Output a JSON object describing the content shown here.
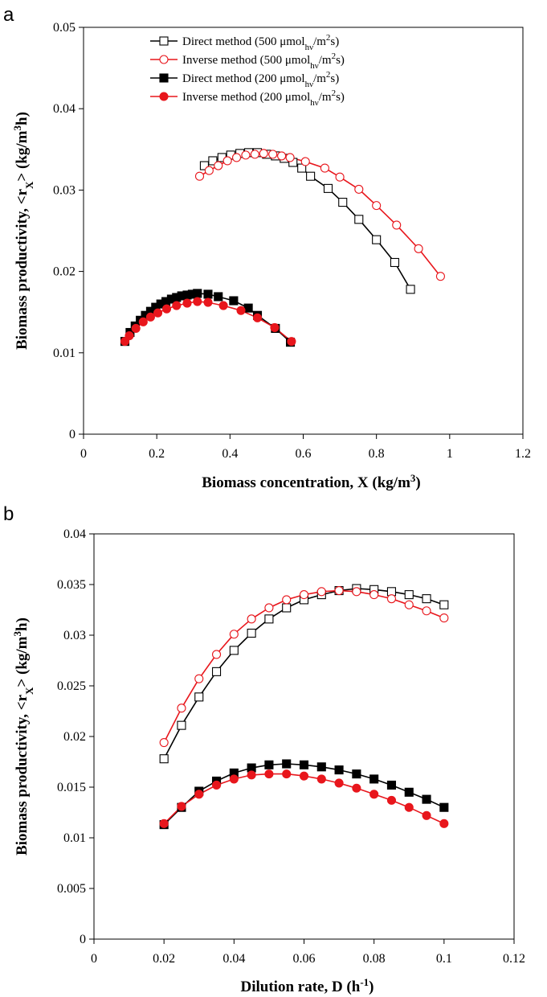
{
  "colors": {
    "black": "#000000",
    "red": "#e8161c"
  },
  "legend_entries": [
    {
      "method": "Direct method",
      "light": "500",
      "color": "#000000",
      "marker": "square",
      "filled": false
    },
    {
      "method": "Inverse method",
      "light": "500",
      "color": "#e8161c",
      "marker": "circle",
      "filled": false
    },
    {
      "method": "Direct method",
      "light": "200",
      "color": "#000000",
      "marker": "square",
      "filled": true
    },
    {
      "method": "Inverse method",
      "light": "200",
      "color": "#e8161c",
      "marker": "circle",
      "filled": true
    }
  ],
  "legend_unit": {
    "prefix": "μmol",
    "sub": "hν",
    "mid": "/m",
    "sup": "2",
    "suffix": "s"
  },
  "chart_data": [
    {
      "panel": "a",
      "type": "scatter",
      "xlabel": "Biomass concentration, X (kg/m³)",
      "ylabel": "Biomass productivity, <rX> (kg/m³h)",
      "xlim": [
        0,
        1.2
      ],
      "ylim": [
        0,
        0.05
      ],
      "xticks": [
        "0",
        "0.2",
        "0.4",
        "0.6",
        "0.8",
        "1",
        "1.2"
      ],
      "yticks": [
        "0",
        "0.01",
        "0.02",
        "0.03",
        "0.04",
        "0.05"
      ],
      "legend_position": "top-left",
      "series": [
        {
          "name": "Direct method (500 μmolhν/m²s)",
          "x": [
            0.33,
            0.353,
            0.378,
            0.402,
            0.427,
            0.451,
            0.475,
            0.5,
            0.524,
            0.548,
            0.572,
            0.596,
            0.62,
            0.668,
            0.708,
            0.752,
            0.8,
            0.85,
            0.893
          ],
          "y": [
            0.033,
            0.0336,
            0.034,
            0.0343,
            0.0345,
            0.0346,
            0.0346,
            0.0344,
            0.0342,
            0.0339,
            0.0334,
            0.0327,
            0.0317,
            0.0302,
            0.0285,
            0.0264,
            0.0239,
            0.0211,
            0.0178
          ]
        },
        {
          "name": "Inverse method (500 μmolhν/m²s)",
          "x": [
            0.317,
            0.343,
            0.368,
            0.393,
            0.418,
            0.443,
            0.468,
            0.492,
            0.517,
            0.541,
            0.564,
            0.606,
            0.659,
            0.7,
            0.752,
            0.8,
            0.855,
            0.915,
            0.975
          ],
          "y": [
            0.0317,
            0.0324,
            0.033,
            0.0336,
            0.034,
            0.0343,
            0.0344,
            0.0345,
            0.0344,
            0.0342,
            0.034,
            0.0335,
            0.0327,
            0.0316,
            0.0301,
            0.0281,
            0.0257,
            0.0228,
            0.0194
          ]
        },
        {
          "name": "Direct method (200 μmolhν/m²s)",
          "x": [
            0.113,
            0.127,
            0.141,
            0.155,
            0.169,
            0.183,
            0.197,
            0.211,
            0.225,
            0.24,
            0.254,
            0.268,
            0.283,
            0.297,
            0.311,
            0.34,
            0.368,
            0.41,
            0.45,
            0.475,
            0.524,
            0.565
          ],
          "y": [
            0.0114,
            0.0125,
            0.0133,
            0.014,
            0.0146,
            0.0151,
            0.0156,
            0.016,
            0.0163,
            0.0166,
            0.0168,
            0.017,
            0.0171,
            0.0172,
            0.0173,
            0.0172,
            0.0169,
            0.0164,
            0.0155,
            0.0146,
            0.013,
            0.0113
          ]
        },
        {
          "name": "Inverse method (200 μmolhν/m²s)",
          "x": [
            0.113,
            0.125,
            0.143,
            0.163,
            0.183,
            0.203,
            0.227,
            0.254,
            0.283,
            0.311,
            0.34,
            0.382,
            0.43,
            0.475,
            0.522,
            0.568
          ],
          "y": [
            0.0114,
            0.0121,
            0.013,
            0.0138,
            0.0144,
            0.0149,
            0.0154,
            0.0158,
            0.0161,
            0.0163,
            0.0162,
            0.0158,
            0.0152,
            0.0143,
            0.0131,
            0.0114
          ]
        }
      ]
    },
    {
      "panel": "b",
      "type": "scatter",
      "xlabel": "Dilution rate, D (h⁻¹)",
      "ylabel": "Biomass productivity, <rX> (kg/m³h)",
      "xlim": [
        0,
        0.12
      ],
      "ylim": [
        0,
        0.04
      ],
      "xticks": [
        "0",
        "0.02",
        "0.04",
        "0.06",
        "0.08",
        "0.1",
        "0.12"
      ],
      "yticks": [
        "0",
        "0.005",
        "0.01",
        "0.015",
        "0.02",
        "0.025",
        "0.03",
        "0.035",
        "0.04"
      ],
      "series": [
        {
          "name": "Direct method (500 μmolhν/m²s)",
          "x": [
            0.02,
            0.025,
            0.03,
            0.035,
            0.04,
            0.045,
            0.05,
            0.055,
            0.06,
            0.065,
            0.07,
            0.075,
            0.08,
            0.085,
            0.09,
            0.095,
            0.1
          ],
          "y": [
            0.0178,
            0.0211,
            0.0239,
            0.0264,
            0.0285,
            0.0302,
            0.0316,
            0.0327,
            0.0335,
            0.034,
            0.0344,
            0.0346,
            0.0345,
            0.0343,
            0.034,
            0.0336,
            0.033
          ]
        },
        {
          "name": "Inverse method (500 μmolhν/m²s)",
          "x": [
            0.02,
            0.025,
            0.03,
            0.035,
            0.04,
            0.045,
            0.05,
            0.055,
            0.06,
            0.065,
            0.07,
            0.075,
            0.08,
            0.085,
            0.09,
            0.095,
            0.1
          ],
          "y": [
            0.0194,
            0.0228,
            0.0257,
            0.0281,
            0.0301,
            0.0316,
            0.0327,
            0.0335,
            0.034,
            0.0343,
            0.0344,
            0.0343,
            0.034,
            0.0336,
            0.033,
            0.0324,
            0.0317
          ]
        },
        {
          "name": "Direct method (200 μmolhν/m²s)",
          "x": [
            0.02,
            0.025,
            0.03,
            0.035,
            0.04,
            0.045,
            0.05,
            0.055,
            0.06,
            0.065,
            0.07,
            0.075,
            0.08,
            0.085,
            0.09,
            0.095,
            0.1
          ],
          "y": [
            0.0113,
            0.013,
            0.0146,
            0.0156,
            0.0164,
            0.0169,
            0.0172,
            0.0173,
            0.0172,
            0.017,
            0.0167,
            0.0163,
            0.0158,
            0.0152,
            0.0145,
            0.0138,
            0.013
          ]
        },
        {
          "name": "Inverse method (200 μmolhν/m²s)",
          "x": [
            0.02,
            0.025,
            0.03,
            0.035,
            0.04,
            0.045,
            0.05,
            0.055,
            0.06,
            0.065,
            0.07,
            0.075,
            0.08,
            0.085,
            0.09,
            0.095,
            0.1
          ],
          "y": [
            0.0114,
            0.0131,
            0.0143,
            0.0152,
            0.0158,
            0.0162,
            0.0163,
            0.0163,
            0.0161,
            0.0158,
            0.0154,
            0.0149,
            0.0143,
            0.0137,
            0.013,
            0.0122,
            0.0114
          ]
        }
      ]
    }
  ]
}
